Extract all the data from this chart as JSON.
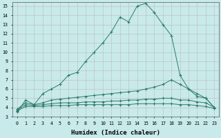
{
  "xlabel": "Humidex (Indice chaleur)",
  "xlim": [
    -0.5,
    23.5
  ],
  "ylim": [
    3,
    15.4
  ],
  "yticks": [
    3,
    4,
    5,
    6,
    7,
    8,
    9,
    10,
    11,
    12,
    13,
    14,
    15
  ],
  "xticks": [
    0,
    1,
    2,
    3,
    4,
    5,
    6,
    7,
    8,
    9,
    10,
    11,
    12,
    13,
    14,
    15,
    16,
    17,
    18,
    19,
    20,
    21,
    22,
    23
  ],
  "bg_color": "#c8eaea",
  "grid_color": "#b0c8c8",
  "line_color": "#2a7a6a",
  "series": [
    {
      "x": [
        0,
        1,
        2,
        3,
        4,
        5,
        6,
        7,
        8,
        9,
        10,
        11,
        12,
        13,
        14,
        15,
        16,
        17,
        18,
        19,
        20,
        21,
        22,
        23
      ],
      "y": [
        3.5,
        4.8,
        4.3,
        5.5,
        6.0,
        6.5,
        7.5,
        7.8,
        9.0,
        10.0,
        11.0,
        12.2,
        13.8,
        13.3,
        15.0,
        15.3,
        14.3,
        13.0,
        11.8,
        7.5,
        6.0,
        5.2,
        5.0,
        4.0
      ]
    },
    {
      "x": [
        0,
        1,
        2,
        3,
        4,
        5,
        6,
        7,
        8,
        9,
        10,
        11,
        12,
        13,
        14,
        15,
        16,
        17,
        18,
        19,
        20,
        21,
        22,
        23
      ],
      "y": [
        3.8,
        4.5,
        4.3,
        4.5,
        4.8,
        4.9,
        5.0,
        5.1,
        5.2,
        5.3,
        5.4,
        5.5,
        5.6,
        5.7,
        5.8,
        6.0,
        6.2,
        6.5,
        7.0,
        6.5,
        6.0,
        5.5,
        5.0,
        4.0
      ]
    },
    {
      "x": [
        0,
        1,
        2,
        3,
        4,
        5,
        6,
        7,
        8,
        9,
        10,
        11,
        12,
        13,
        14,
        15,
        16,
        17,
        18,
        19,
        20,
        21,
        22,
        23
      ],
      "y": [
        3.7,
        4.3,
        4.2,
        4.3,
        4.4,
        4.5,
        4.5,
        4.5,
        4.6,
        4.6,
        4.6,
        4.7,
        4.7,
        4.8,
        4.8,
        4.9,
        4.9,
        5.0,
        5.0,
        4.8,
        4.8,
        4.6,
        4.5,
        4.0
      ]
    },
    {
      "x": [
        0,
        1,
        2,
        3,
        4,
        5,
        6,
        7,
        8,
        9,
        10,
        11,
        12,
        13,
        14,
        15,
        16,
        17,
        18,
        19,
        20,
        21,
        22,
        23
      ],
      "y": [
        3.6,
        4.1,
        4.1,
        4.1,
        4.2,
        4.2,
        4.2,
        4.3,
        4.3,
        4.3,
        4.3,
        4.3,
        4.3,
        4.3,
        4.4,
        4.4,
        4.4,
        4.4,
        4.4,
        4.3,
        4.3,
        4.2,
        4.1,
        3.9
      ]
    }
  ]
}
